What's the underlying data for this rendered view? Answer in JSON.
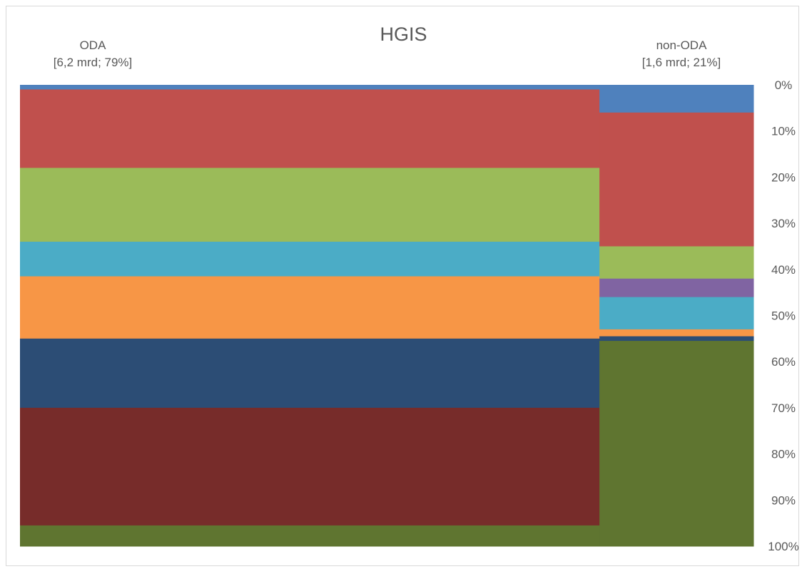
{
  "chart_data": {
    "type": "mosaic",
    "title": "HGIS",
    "columns": [
      {
        "name": "ODA",
        "detail": "[6,2 mrd; 79%]",
        "share": 0.79,
        "segments": [
          {
            "color": "#4F81BD",
            "value": 1
          },
          {
            "color": "#C0504D",
            "value": 17
          },
          {
            "color": "#9BBB59",
            "value": 16
          },
          {
            "color": "#4BACC6",
            "value": 7.5
          },
          {
            "color": "#F79646",
            "value": 13.5
          },
          {
            "color": "#2C4D75",
            "value": 15
          },
          {
            "color": "#772C2A",
            "value": 25.5
          },
          {
            "color": "#5F7530",
            "value": 4.5
          }
        ]
      },
      {
        "name": "non-ODA",
        "detail": "[1,6 mrd; 21%]",
        "share": 0.21,
        "segments": [
          {
            "color": "#4F81BD",
            "value": 6
          },
          {
            "color": "#C0504D",
            "value": 29
          },
          {
            "color": "#9BBB59",
            "value": 7
          },
          {
            "color": "#8064A2",
            "value": 4
          },
          {
            "color": "#4BACC6",
            "value": 7
          },
          {
            "color": "#F79646",
            "value": 1.5
          },
          {
            "color": "#2C4D75",
            "value": 1
          },
          {
            "color": "#5F7530",
            "value": 44.5
          }
        ]
      }
    ],
    "y_ticks": [
      "0%",
      "10%",
      "20%",
      "30%",
      "40%",
      "50%",
      "60%",
      "70%",
      "80%",
      "90%",
      "100%"
    ],
    "ylim": [
      0,
      100
    ],
    "y_inverted": true,
    "grid": false,
    "legend": "none"
  }
}
